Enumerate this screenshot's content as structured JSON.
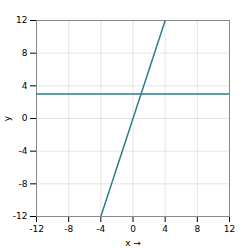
{
  "chart_data": {
    "type": "line",
    "xlabel": "x",
    "ylabel": "y",
    "xlim": [
      -12,
      12
    ],
    "ylim": [
      -12,
      12
    ],
    "xticks": [
      -12,
      -8,
      -4,
      0,
      4,
      8,
      12
    ],
    "yticks": [
      -12,
      -8,
      -4,
      0,
      4,
      8,
      12
    ],
    "grid": true,
    "color": "#2e7d8c",
    "series": [
      {
        "x": [
          -12,
          12
        ],
        "values": [
          3,
          3
        ]
      },
      {
        "x": [
          -4,
          4
        ],
        "values": [
          -12,
          12
        ]
      }
    ]
  }
}
